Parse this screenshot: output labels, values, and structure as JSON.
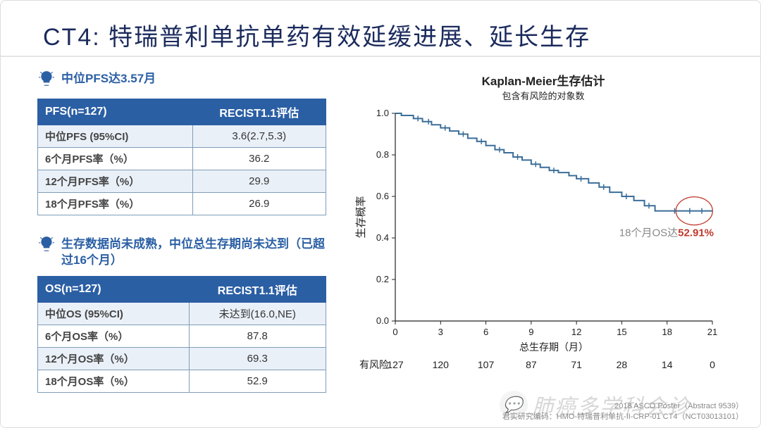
{
  "title": "CT4: 特瑞普利单抗单药有效延缓进展、延长生存",
  "left": {
    "block1": {
      "bulb_text": "中位PFS达3.57月",
      "header_left": "PFS(n=127)",
      "header_right": "RECIST1.1评估",
      "rows": [
        {
          "label": "中位PFS (95%CI)",
          "value": "3.6(2.7,5.3)"
        },
        {
          "label": "6个月PFS率（%）",
          "value": "36.2"
        },
        {
          "label": "12个月PFS率（%）",
          "value": "29.9"
        },
        {
          "label": "18个月PFS率（%）",
          "value": "26.9"
        }
      ]
    },
    "block2": {
      "bulb_text": "生存数据尚未成熟，中位总生存期尚未达到（已超过16个月）",
      "header_left": "OS(n=127)",
      "header_right": "RECIST1.1评估",
      "rows": [
        {
          "label": "中位OS (95%CI)",
          "value": "未达到(16.0,NE)"
        },
        {
          "label": "6个月OS率（%）",
          "value": "87.8"
        },
        {
          "label": "12个月OS率（%）",
          "value": "69.3"
        },
        {
          "label": "18个月OS率（%）",
          "value": "52.9"
        }
      ]
    }
  },
  "chart": {
    "type": "kaplan-meier",
    "title": "Kaplan-Meier生存估计",
    "subtitle": "包含有风险的对象数",
    "ylabel": "生存概率",
    "xlabel": "总生存期（月）",
    "risk_label": "有风险",
    "xlim": [
      0,
      21
    ],
    "xtick_step": 3,
    "xticks": [
      0,
      3,
      6,
      9,
      12,
      15,
      18,
      21
    ],
    "ylim": [
      0,
      1.0
    ],
    "ytick_step": 0.2,
    "yticks": [
      0,
      0.2,
      0.4,
      0.6,
      0.8,
      1.0
    ],
    "line_color": "#3b6e99",
    "line_width": 2,
    "censor_marker": "tick",
    "censor_color": "#3b6e99",
    "background_color": "#ffffff",
    "axis_color": "#222222",
    "font_size_axis": 13,
    "callout_prefix": "18个月OS达",
    "callout_value": "52.91%",
    "callout_prefix_color": "#888888",
    "callout_value_color": "#c0392b",
    "callout_circle_color": "#c0392b",
    "risk_table": [
      127,
      120,
      107,
      87,
      71,
      28,
      14,
      0
    ],
    "km_points": [
      [
        0.0,
        1.0
      ],
      [
        0.4,
        1.0
      ],
      [
        0.4,
        0.99
      ],
      [
        1.2,
        0.99
      ],
      [
        1.2,
        0.975
      ],
      [
        1.8,
        0.975
      ],
      [
        1.8,
        0.96
      ],
      [
        2.4,
        0.96
      ],
      [
        2.4,
        0.945
      ],
      [
        3.0,
        0.945
      ],
      [
        3.0,
        0.93
      ],
      [
        3.6,
        0.93
      ],
      [
        3.6,
        0.915
      ],
      [
        4.2,
        0.915
      ],
      [
        4.2,
        0.9
      ],
      [
        4.8,
        0.9
      ],
      [
        4.8,
        0.88
      ],
      [
        5.4,
        0.88
      ],
      [
        5.4,
        0.865
      ],
      [
        6.0,
        0.865
      ],
      [
        6.0,
        0.845
      ],
      [
        6.6,
        0.845
      ],
      [
        6.6,
        0.825
      ],
      [
        7.2,
        0.825
      ],
      [
        7.2,
        0.81
      ],
      [
        7.8,
        0.81
      ],
      [
        7.8,
        0.79
      ],
      [
        8.4,
        0.79
      ],
      [
        8.4,
        0.775
      ],
      [
        9.0,
        0.775
      ],
      [
        9.0,
        0.755
      ],
      [
        9.6,
        0.755
      ],
      [
        9.6,
        0.74
      ],
      [
        10.2,
        0.74
      ],
      [
        10.2,
        0.725
      ],
      [
        10.8,
        0.725
      ],
      [
        10.8,
        0.715
      ],
      [
        11.5,
        0.715
      ],
      [
        11.5,
        0.7
      ],
      [
        12.0,
        0.7
      ],
      [
        12.0,
        0.685
      ],
      [
        12.8,
        0.685
      ],
      [
        12.8,
        0.665
      ],
      [
        13.5,
        0.665
      ],
      [
        13.5,
        0.645
      ],
      [
        14.2,
        0.645
      ],
      [
        14.2,
        0.62
      ],
      [
        15.0,
        0.62
      ],
      [
        15.0,
        0.6
      ],
      [
        15.8,
        0.6
      ],
      [
        15.8,
        0.58
      ],
      [
        16.5,
        0.58
      ],
      [
        16.5,
        0.555
      ],
      [
        17.2,
        0.555
      ],
      [
        17.2,
        0.53
      ],
      [
        18.0,
        0.53
      ],
      [
        21.0,
        0.53
      ]
    ],
    "censor_x": [
      1.5,
      2.2,
      3.3,
      4.5,
      5.7,
      6.9,
      8.1,
      9.3,
      10.5,
      12.3,
      13.8,
      15.3,
      16.8,
      18.5,
      19.5,
      20.3
    ]
  },
  "footer": {
    "line1": "2018  ASCO Poster（Abstract 9539）",
    "line2": "君实研究编码：HMO-特瑞普利单抗-II-CRP-01 CT4（NCT03013101）"
  },
  "watermark": "肺癌多学科会诊"
}
